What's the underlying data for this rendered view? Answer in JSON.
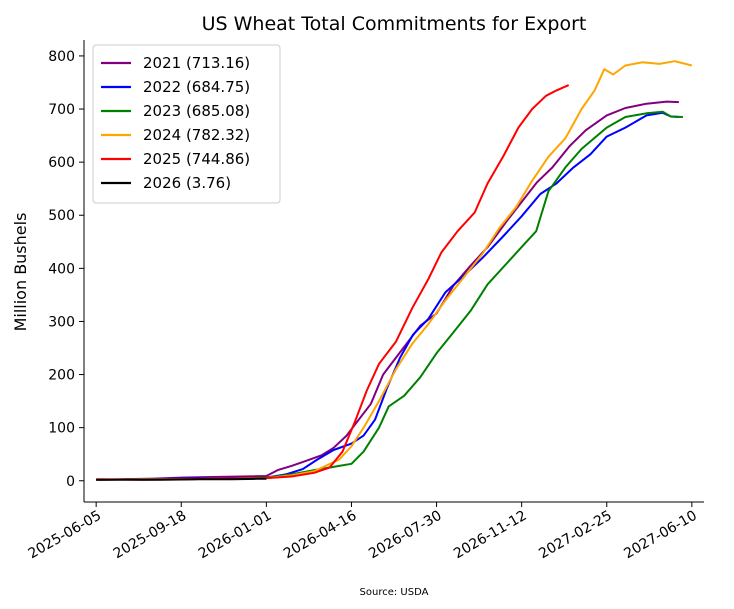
{
  "chart_data": {
    "type": "line",
    "title": "US Wheat Total Commitments for Export",
    "ylabel": "Million Bushels",
    "xlabel": "",
    "source": "Source: USDA",
    "ylim": [
      -40,
      830
    ],
    "xlim": [
      "2025-05-21",
      "2027-06-25"
    ],
    "y_ticks": [
      0,
      100,
      200,
      300,
      400,
      500,
      600,
      700,
      800
    ],
    "x_ticks": [
      "2025-06-05",
      "2025-09-18",
      "2026-01-01",
      "2026-04-16",
      "2026-07-30",
      "2026-11-12",
      "2027-02-25",
      "2027-06-10"
    ],
    "grid": false,
    "legend_position": "top-left",
    "series": [
      {
        "name": "2021 (713.16)",
        "color": "#800080",
        "points": [
          [
            "2025-06-05",
            2
          ],
          [
            "2025-07-10",
            3
          ],
          [
            "2025-08-15",
            4
          ],
          [
            "2025-09-18",
            6
          ],
          [
            "2025-10-25",
            7
          ],
          [
            "2025-12-01",
            8
          ],
          [
            "2026-01-01",
            9
          ],
          [
            "2026-01-15",
            20
          ],
          [
            "2026-02-01",
            28
          ],
          [
            "2026-02-20",
            38
          ],
          [
            "2026-03-10",
            48
          ],
          [
            "2026-03-25",
            62
          ],
          [
            "2026-04-10",
            85
          ],
          [
            "2026-04-25",
            115
          ],
          [
            "2026-05-10",
            145
          ],
          [
            "2026-05-25",
            200
          ],
          [
            "2026-06-10",
            232
          ],
          [
            "2026-06-25",
            262
          ],
          [
            "2026-07-10",
            292
          ],
          [
            "2026-07-30",
            315
          ],
          [
            "2026-08-20",
            368
          ],
          [
            "2026-09-10",
            405
          ],
          [
            "2026-10-01",
            440
          ],
          [
            "2026-10-25",
            490
          ],
          [
            "2026-11-12",
            525
          ],
          [
            "2026-12-01",
            562
          ],
          [
            "2026-12-20",
            590
          ],
          [
            "2027-01-10",
            630
          ],
          [
            "2027-01-30",
            660
          ],
          [
            "2027-02-25",
            688
          ],
          [
            "2027-03-20",
            702
          ],
          [
            "2027-04-15",
            710
          ],
          [
            "2027-05-10",
            714
          ],
          [
            "2027-05-25",
            713
          ]
        ]
      },
      {
        "name": "2022 (684.75)",
        "color": "#0000ff",
        "points": [
          [
            "2025-06-05",
            2
          ],
          [
            "2025-08-01",
            3
          ],
          [
            "2025-09-18",
            4
          ],
          [
            "2025-11-10",
            5
          ],
          [
            "2026-01-01",
            6
          ],
          [
            "2026-01-25",
            12
          ],
          [
            "2026-02-15",
            22
          ],
          [
            "2026-03-05",
            40
          ],
          [
            "2026-03-25",
            58
          ],
          [
            "2026-04-16",
            70
          ],
          [
            "2026-05-01",
            85
          ],
          [
            "2026-05-15",
            115
          ],
          [
            "2026-05-30",
            175
          ],
          [
            "2026-06-15",
            232
          ],
          [
            "2026-07-01",
            275
          ],
          [
            "2026-07-20",
            305
          ],
          [
            "2026-08-10",
            355
          ],
          [
            "2026-09-01",
            385
          ],
          [
            "2026-09-25",
            420
          ],
          [
            "2026-10-20",
            460
          ],
          [
            "2026-11-12",
            498
          ],
          [
            "2026-12-05",
            540
          ],
          [
            "2026-12-25",
            560
          ],
          [
            "2027-01-15",
            590
          ],
          [
            "2027-02-05",
            615
          ],
          [
            "2027-02-25",
            648
          ],
          [
            "2027-03-20",
            665
          ],
          [
            "2027-04-15",
            688
          ],
          [
            "2027-05-05",
            693
          ],
          [
            "2027-05-15",
            686
          ],
          [
            "2027-05-25",
            685
          ]
        ]
      },
      {
        "name": "2023 (685.08)",
        "color": "#008000",
        "points": [
          [
            "2025-06-05",
            2
          ],
          [
            "2025-08-01",
            3
          ],
          [
            "2025-09-18",
            3
          ],
          [
            "2025-11-10",
            4
          ],
          [
            "2026-01-01",
            6
          ],
          [
            "2026-02-01",
            12
          ],
          [
            "2026-03-01",
            20
          ],
          [
            "2026-04-01",
            28
          ],
          [
            "2026-04-16",
            32
          ],
          [
            "2026-05-01",
            55
          ],
          [
            "2026-05-20",
            100
          ],
          [
            "2026-06-01",
            140
          ],
          [
            "2026-06-20",
            160
          ],
          [
            "2026-07-10",
            195
          ],
          [
            "2026-07-30",
            240
          ],
          [
            "2026-08-20",
            280
          ],
          [
            "2026-09-10",
            320
          ],
          [
            "2026-10-01",
            370
          ],
          [
            "2026-10-25",
            410
          ],
          [
            "2026-11-12",
            440
          ],
          [
            "2026-11-30",
            470
          ],
          [
            "2026-12-15",
            545
          ],
          [
            "2027-01-05",
            590
          ],
          [
            "2027-01-25",
            625
          ],
          [
            "2027-02-25",
            665
          ],
          [
            "2027-03-20",
            685
          ],
          [
            "2027-04-15",
            692
          ],
          [
            "2027-05-05",
            695
          ],
          [
            "2027-05-15",
            686
          ],
          [
            "2027-05-30",
            685
          ]
        ]
      },
      {
        "name": "2024 (782.32)",
        "color": "#ffa500",
        "points": [
          [
            "2025-06-05",
            2
          ],
          [
            "2025-08-01",
            3
          ],
          [
            "2025-09-18",
            3
          ],
          [
            "2025-11-10",
            4
          ],
          [
            "2026-01-01",
            5
          ],
          [
            "2026-02-01",
            10
          ],
          [
            "2026-03-01",
            18
          ],
          [
            "2026-04-01",
            40
          ],
          [
            "2026-04-16",
            65
          ],
          [
            "2026-05-01",
            100
          ],
          [
            "2026-05-20",
            150
          ],
          [
            "2026-06-10",
            210
          ],
          [
            "2026-06-30",
            258
          ],
          [
            "2026-07-20",
            295
          ],
          [
            "2026-08-10",
            340
          ],
          [
            "2026-09-01",
            382
          ],
          [
            "2026-09-25",
            428
          ],
          [
            "2026-10-15",
            475
          ],
          [
            "2026-11-05",
            515
          ],
          [
            "2026-11-25",
            565
          ],
          [
            "2026-12-15",
            610
          ],
          [
            "2027-01-05",
            645
          ],
          [
            "2027-01-25",
            700
          ],
          [
            "2027-02-10",
            735
          ],
          [
            "2027-02-22",
            775
          ],
          [
            "2027-03-05",
            765
          ],
          [
            "2027-03-20",
            782
          ],
          [
            "2027-04-10",
            788
          ],
          [
            "2027-05-01",
            785
          ],
          [
            "2027-05-20",
            790
          ],
          [
            "2027-06-10",
            782
          ]
        ]
      },
      {
        "name": "2025 (744.86)",
        "color": "#ff0000",
        "points": [
          [
            "2025-06-05",
            3
          ],
          [
            "2025-08-01",
            2
          ],
          [
            "2025-09-18",
            3
          ],
          [
            "2025-11-10",
            4
          ],
          [
            "2026-01-01",
            5
          ],
          [
            "2026-02-01",
            8
          ],
          [
            "2026-03-01",
            15
          ],
          [
            "2026-03-20",
            25
          ],
          [
            "2026-04-05",
            55
          ],
          [
            "2026-04-20",
            110
          ],
          [
            "2026-05-05",
            170
          ],
          [
            "2026-05-20",
            220
          ],
          [
            "2026-06-10",
            262
          ],
          [
            "2026-06-30",
            325
          ],
          [
            "2026-07-20",
            380
          ],
          [
            "2026-08-05",
            430
          ],
          [
            "2026-08-25",
            470
          ],
          [
            "2026-09-15",
            505
          ],
          [
            "2026-10-01",
            560
          ],
          [
            "2026-10-20",
            610
          ],
          [
            "2026-11-08",
            665
          ],
          [
            "2026-11-25",
            700
          ],
          [
            "2026-12-12",
            725
          ],
          [
            "2026-12-25",
            735
          ],
          [
            "2027-01-09",
            745
          ]
        ]
      },
      {
        "name": "2026 (3.76)",
        "color": "#000000",
        "points": [
          [
            "2025-06-05",
            2
          ],
          [
            "2025-07-15",
            2
          ],
          [
            "2025-08-25",
            2
          ],
          [
            "2025-10-10",
            3
          ],
          [
            "2025-11-20",
            3
          ],
          [
            "2025-12-20",
            3.76
          ],
          [
            "2026-01-01",
            3.76
          ]
        ]
      }
    ]
  }
}
